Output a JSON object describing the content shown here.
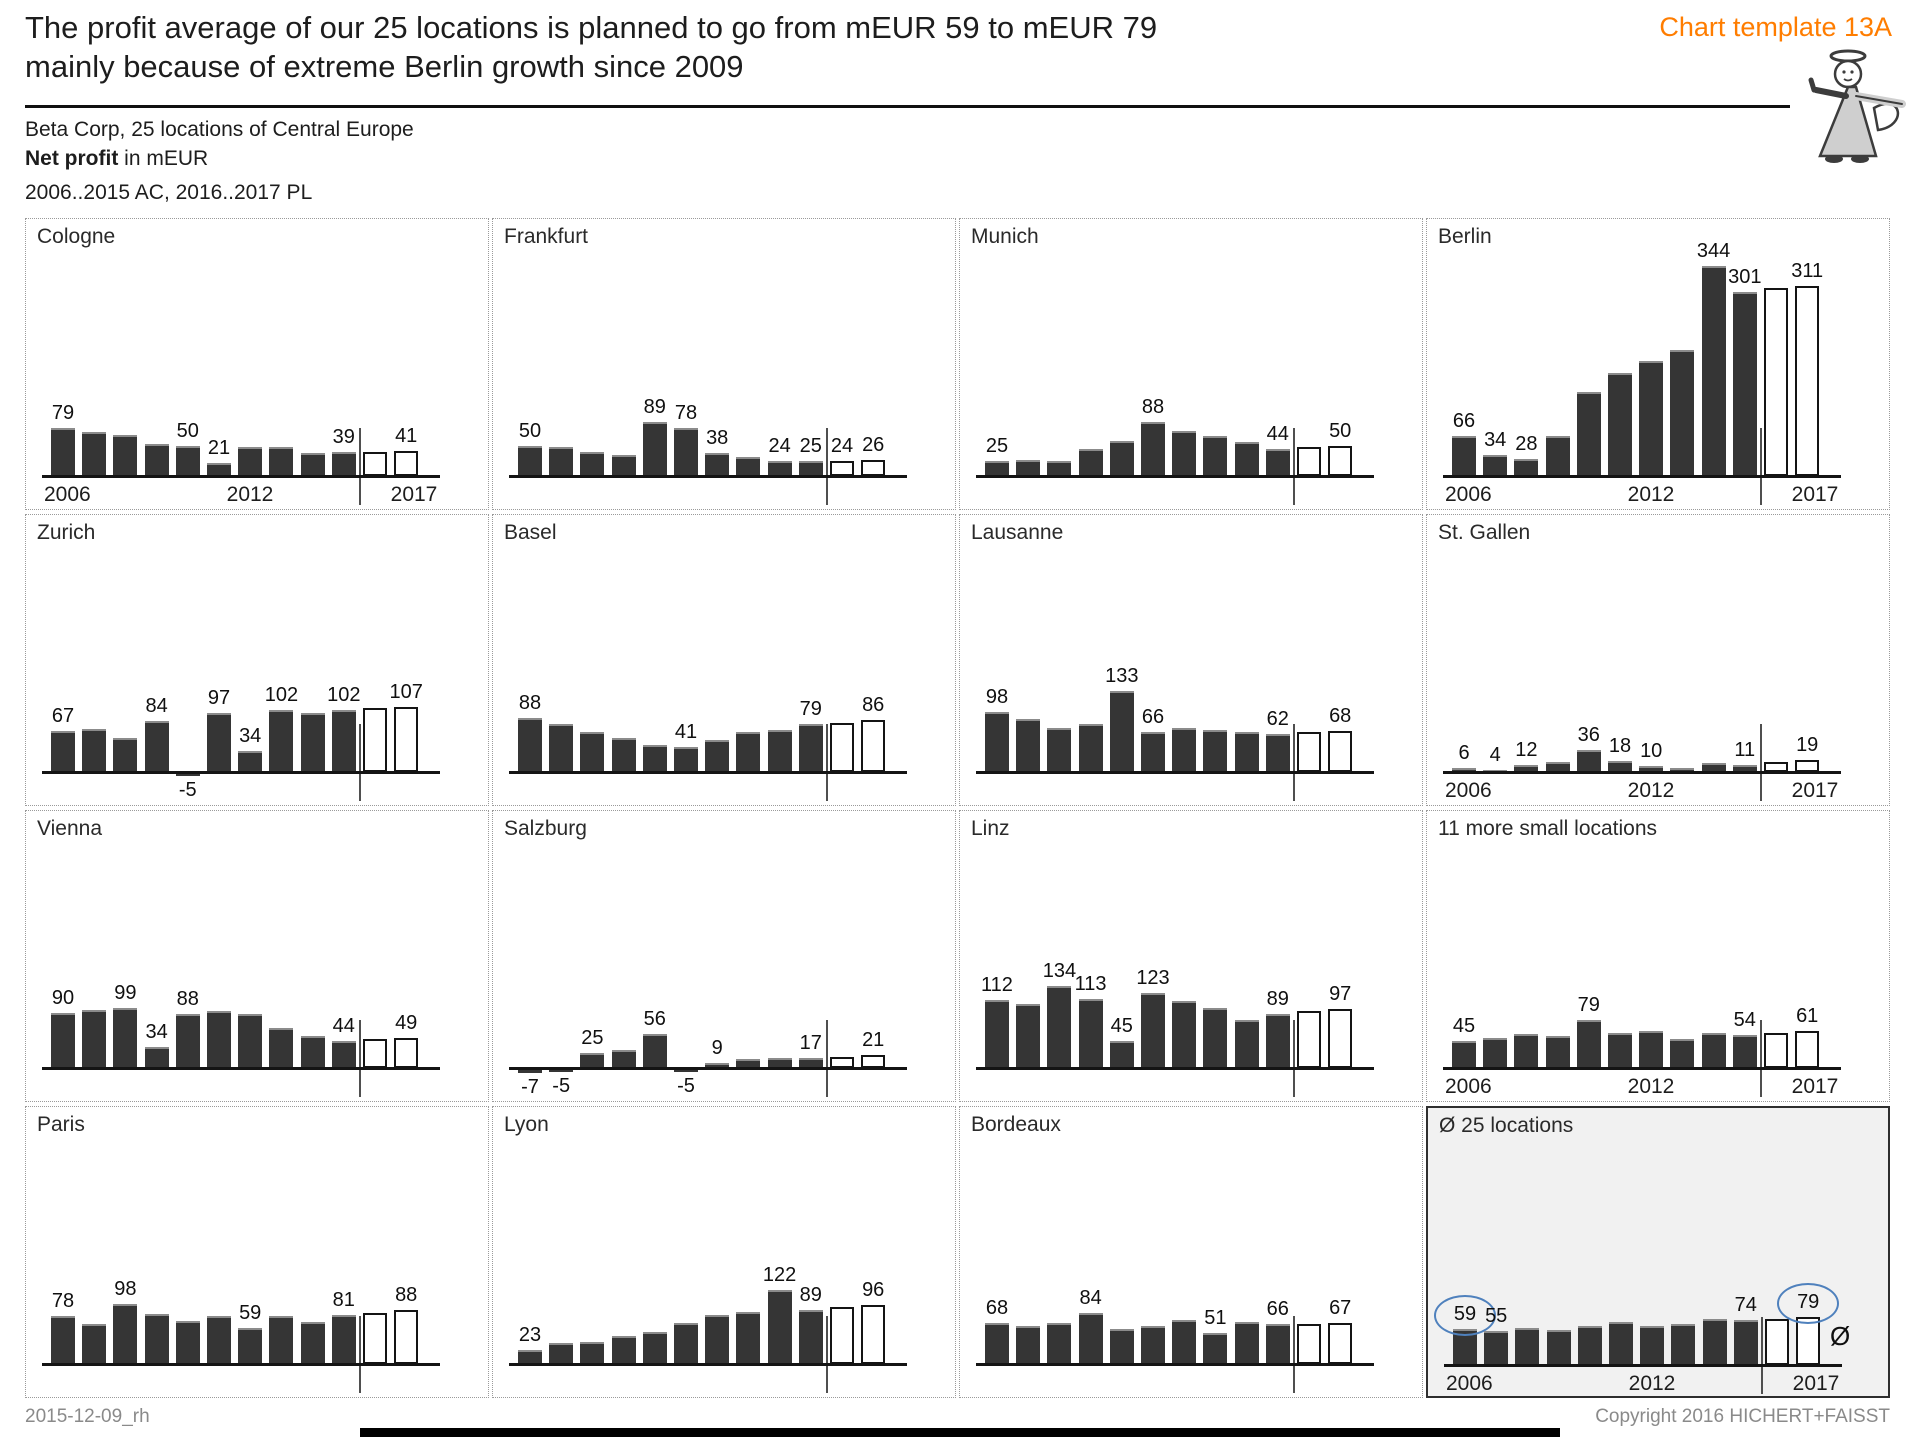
{
  "header": {
    "title": "The profit average of our 25 locations is planned to go from mEUR 59 to mEUR 79\nmainly because of extreme Berlin growth since 2009",
    "template_label": "Chart template 13A",
    "subtitle_line1": "Beta Corp, 25 locations of Central Europe",
    "subtitle_bold": "Net profit",
    "subtitle_rest": " in mEUR",
    "subtitle_line3": "2006..2015 AC, 2016..2017 PL"
  },
  "footer": {
    "left": "2015-12-09_rh",
    "right": "Copyright 2016 HICHERT+FAISST"
  },
  "colors": {
    "bar_actual": "#353535",
    "bar_plan_fill": "#ffffff",
    "bar_plan_border": "#141414",
    "accent_orange": "#ff7d00",
    "circle_blue": "#4f81bd",
    "panel_border_dotted": "#9a9a9a",
    "avg_panel_bg": "#f1f1f1",
    "footer_gray": "#8a8a8a"
  },
  "chart_data": {
    "type": "bar",
    "layout": "4x4-small-multiples",
    "unit": "mEUR",
    "x": [
      2006,
      2007,
      2008,
      2009,
      2010,
      2011,
      2012,
      2013,
      2014,
      2015,
      2016,
      2017
    ],
    "actual_span": "2006..2015 AC",
    "plan_span": "2016..2017 PL",
    "plan_from_index": 10,
    "axis_year_ticks": [
      "2006",
      "2012",
      "2017"
    ],
    "panels": [
      {
        "name": "Cologne",
        "values": [
          79,
          72,
          68,
          53,
          50,
          21,
          47,
          47,
          38,
          39,
          40,
          41
        ],
        "labeled": [
          0,
          4,
          5,
          9,
          11
        ],
        "years": true
      },
      {
        "name": "Frankfurt",
        "values": [
          50,
          48,
          40,
          34,
          89,
          78,
          38,
          31,
          24,
          25,
          24,
          26
        ],
        "labeled": [
          0,
          4,
          5,
          6,
          8,
          9,
          10,
          11
        ],
        "years": false
      },
      {
        "name": "Munich",
        "values": [
          25,
          27,
          25,
          45,
          58,
          88,
          74,
          66,
          55,
          44,
          48,
          50
        ],
        "labeled": [
          0,
          5,
          9,
          11
        ],
        "years": false
      },
      {
        "name": "Berlin",
        "values": [
          66,
          34,
          28,
          66,
          137,
          169,
          189,
          206,
          344,
          301,
          308,
          311
        ],
        "labeled": [
          0,
          1,
          2,
          8,
          9,
          11
        ],
        "years": true
      },
      {
        "name": "Zurich",
        "values": [
          67,
          70,
          56,
          84,
          -5,
          97,
          34,
          102,
          96,
          102,
          105,
          107
        ],
        "labeled": [
          0,
          3,
          4,
          5,
          6,
          7,
          9,
          11
        ],
        "years": false
      },
      {
        "name": "Basel",
        "values": [
          88,
          78,
          66,
          56,
          44,
          41,
          52,
          66,
          69,
          79,
          81,
          86
        ],
        "labeled": [
          0,
          5,
          9,
          11
        ],
        "years": false
      },
      {
        "name": "Lausanne",
        "values": [
          98,
          87,
          72,
          79,
          133,
          66,
          72,
          69,
          66,
          62,
          65,
          68
        ],
        "labeled": [
          0,
          4,
          5,
          9,
          11
        ],
        "years": false
      },
      {
        "name": "St. Gallen",
        "values": [
          6,
          4,
          12,
          16,
          36,
          18,
          10,
          7,
          15,
          11,
          17,
          19
        ],
        "labeled": [
          0,
          1,
          2,
          4,
          5,
          6,
          9,
          11
        ],
        "years": true
      },
      {
        "name": "Vienna",
        "values": [
          90,
          95,
          99,
          34,
          88,
          93,
          89,
          66,
          53,
          44,
          48,
          49
        ],
        "labeled": [
          0,
          2,
          3,
          4,
          9,
          11
        ],
        "years": false
      },
      {
        "name": "Salzburg",
        "values": [
          -7,
          -5,
          25,
          30,
          56,
          -5,
          9,
          14,
          16,
          17,
          18,
          21
        ],
        "labeled": [
          0,
          1,
          2,
          4,
          5,
          6,
          9,
          11
        ],
        "years": false
      },
      {
        "name": "Linz",
        "values": [
          112,
          105,
          134,
          113,
          45,
          123,
          110,
          98,
          79,
          89,
          93,
          97
        ],
        "labeled": [
          0,
          2,
          3,
          4,
          5,
          9,
          11
        ],
        "years": false
      },
      {
        "name": "11 more small locations",
        "values": [
          45,
          49,
          56,
          53,
          79,
          57,
          60,
          48,
          57,
          54,
          58,
          61
        ],
        "labeled": [
          0,
          4,
          9,
          11
        ],
        "years": true
      },
      {
        "name": "Paris",
        "values": [
          78,
          65,
          98,
          82,
          71,
          79,
          59,
          79,
          69,
          81,
          84,
          88
        ],
        "labeled": [
          0,
          2,
          6,
          9,
          11
        ],
        "years": false
      },
      {
        "name": "Lyon",
        "values": [
          23,
          35,
          36,
          46,
          52,
          68,
          80,
          85,
          122,
          89,
          93,
          96
        ],
        "labeled": [
          0,
          8,
          9,
          11
        ],
        "years": false
      },
      {
        "name": "Bordeaux",
        "values": [
          68,
          63,
          68,
          84,
          58,
          63,
          72,
          51,
          69,
          66,
          66,
          67
        ],
        "labeled": [
          0,
          3,
          7,
          9,
          11
        ],
        "years": false
      },
      {
        "name": "Ø 25 locations",
        "values": [
          59,
          55,
          60,
          58,
          64,
          70,
          64,
          67,
          75,
          74,
          76,
          79
        ],
        "labeled": [
          0,
          1,
          9,
          11
        ],
        "years": true,
        "highlight": true,
        "circled": [
          0,
          11
        ],
        "avg_symbol": "Ø"
      }
    ]
  }
}
